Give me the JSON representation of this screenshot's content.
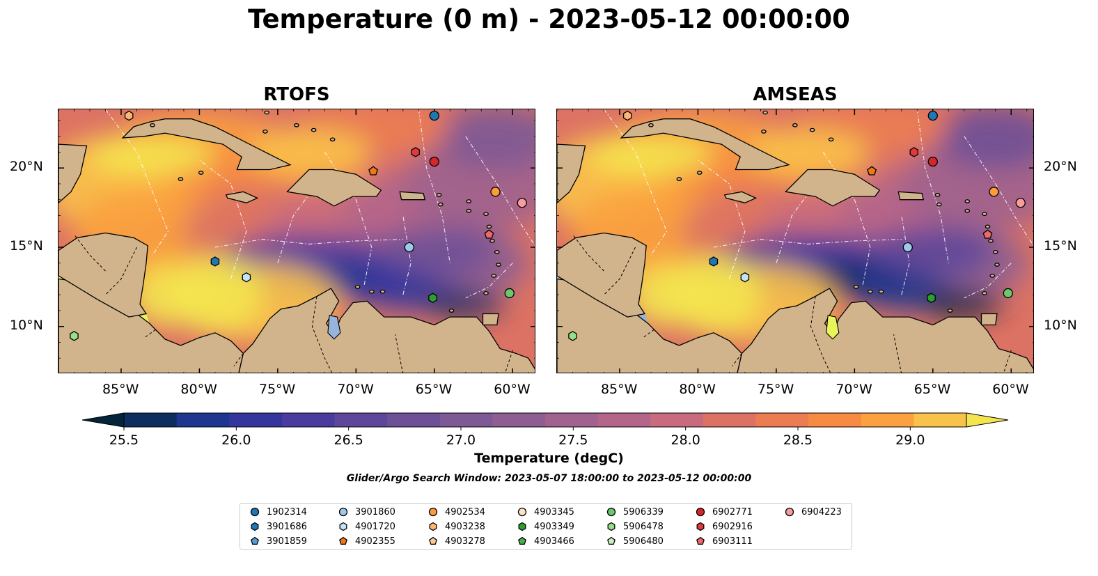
{
  "title": "Temperature (0 m) - 2023-05-12 00:00:00",
  "panels": [
    {
      "title": "RTOFS",
      "lower_left_bg": "#e8f55a"
    },
    {
      "title": "AMSEAS",
      "lower_left_bg": "#97b5dc"
    }
  ],
  "axes": {
    "x_ticks": [
      "85°W",
      "80°W",
      "75°W",
      "70°W",
      "65°W",
      "60°W"
    ],
    "x_values": [
      -85,
      -80,
      -75,
      -70,
      -65,
      -60
    ],
    "y_ticks": [
      "20°N",
      "15°N",
      "10°N"
    ],
    "y_values": [
      20,
      15,
      10
    ],
    "lon_range": [
      -89,
      -58.5
    ],
    "lat_range": [
      7,
      23.7
    ]
  },
  "colorbar": {
    "label": "Temperature (degC)",
    "ticks": [
      "25.5",
      "26.0",
      "26.5",
      "27.0",
      "27.5",
      "28.0",
      "28.5",
      "29.0"
    ],
    "tick_values": [
      25.5,
      26.0,
      26.5,
      27.0,
      27.5,
      28.0,
      28.5,
      29.0
    ],
    "range": [
      25.5,
      29.25
    ],
    "extend": "both",
    "colors": [
      "#03243a",
      "#0d2d5e",
      "#1f3690",
      "#34369e",
      "#4a3c9e",
      "#5d479a",
      "#6e5097",
      "#7d5995",
      "#8e5e92",
      "#a0628e",
      "#b4668a",
      "#c86b7e",
      "#dc7264",
      "#ec7d52",
      "#f78b43",
      "#fba13f",
      "#f9c24a",
      "#f4e54f"
    ]
  },
  "search_window": "Glider/Argo Search Window: 2023-05-07 18:00:00 to 2023-05-12 00:00:00",
  "legend": [
    {
      "label": "1902314",
      "marker": "circle",
      "color": "#1f77b4"
    },
    {
      "label": "3901686",
      "marker": "hexagon",
      "color": "#1f77b4"
    },
    {
      "label": "3901859",
      "marker": "pentagon",
      "color": "#5b9bd5"
    },
    {
      "label": "3901860",
      "marker": "circle",
      "color": "#9ecae9"
    },
    {
      "label": "4901720",
      "marker": "hexagon",
      "color": "#c6e2f5"
    },
    {
      "label": "4902355",
      "marker": "pentagon",
      "color": "#f07818"
    },
    {
      "label": "4902534",
      "marker": "circle",
      "color": "#fd9a3c"
    },
    {
      "label": "4903238",
      "marker": "hexagon",
      "color": "#fdb574"
    },
    {
      "label": "4903278",
      "marker": "pentagon",
      "color": "#fdc999"
    },
    {
      "label": "4903345",
      "marker": "circle",
      "color": "#fbe2c6"
    },
    {
      "label": "4903349",
      "marker": "hexagon",
      "color": "#2ca02c"
    },
    {
      "label": "4903466",
      "marker": "pentagon",
      "color": "#4daf4a"
    },
    {
      "label": "5906339",
      "marker": "circle",
      "color": "#6cc86a"
    },
    {
      "label": "5906478",
      "marker": "hexagon",
      "color": "#98df8a"
    },
    {
      "label": "5906480",
      "marker": "pentagon",
      "color": "#c7efc0"
    },
    {
      "label": "6902771",
      "marker": "circle",
      "color": "#d62728"
    },
    {
      "label": "6902916",
      "marker": "hexagon",
      "color": "#e03a3a"
    },
    {
      "label": "6903111",
      "marker": "pentagon",
      "color": "#ee6a6a"
    },
    {
      "label": "6904223",
      "marker": "circle",
      "color": "#f99c9c"
    }
  ],
  "markers": [
    {
      "id": "1902314",
      "lon": -65,
      "lat": 23.3
    },
    {
      "id": "4903238",
      "lon": -84.5,
      "lat": 23.3
    },
    {
      "id": "6902916",
      "lon": -66.2,
      "lat": 21.0
    },
    {
      "id": "6902771",
      "lon": -65.0,
      "lat": 20.4
    },
    {
      "id": "4902355",
      "lon": -68.9,
      "lat": 19.8
    },
    {
      "id": "4902534",
      "lon": -61.1,
      "lat": 18.5
    },
    {
      "id": "6904223",
      "lon": -59.4,
      "lat": 17.8
    },
    {
      "id": "6903111",
      "lon": -61.5,
      "lat": 15.8
    },
    {
      "id": "3901860",
      "lon": -66.6,
      "lat": 15.0
    },
    {
      "id": "3901686",
      "lon": -79.0,
      "lat": 14.1
    },
    {
      "id": "4901720",
      "lon": -77.0,
      "lat": 13.1
    },
    {
      "id": "5906339",
      "lon": -60.2,
      "lat": 12.1
    },
    {
      "id": "4903349",
      "lon": -65.1,
      "lat": 11.8
    },
    {
      "id": "5906478",
      "lon": -88.0,
      "lat": 9.4
    }
  ]
}
